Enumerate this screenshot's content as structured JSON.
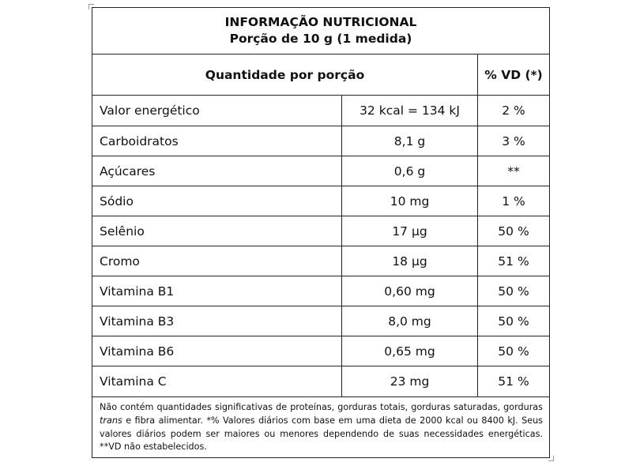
{
  "table": {
    "title": "INFORMAÇÃO NUTRICIONAL",
    "subtitle": "Porção de 10 g (1 medida)",
    "header": {
      "quantity_label": "Quantidade por porção",
      "vd_label": "% VD (*)"
    },
    "rows": [
      {
        "name": "Valor energético",
        "amount": "32 kcal = 134 kJ",
        "vd": "2 %"
      },
      {
        "name": "Carboidratos",
        "amount": "8,1 g",
        "vd": "3 %"
      },
      {
        "name": "Açúcares",
        "amount": "0,6 g",
        "vd": "**"
      },
      {
        "name": "Sódio",
        "amount": "10 mg",
        "vd": "1 %"
      },
      {
        "name": "Selênio",
        "amount": "17 µg",
        "vd": "50 %"
      },
      {
        "name": "Cromo",
        "amount": "18 µg",
        "vd": "51 %"
      },
      {
        "name": "Vitamina B1",
        "amount": "0,60 mg",
        "vd": "50 %"
      },
      {
        "name": "Vitamina B3",
        "amount": "8,0 mg",
        "vd": "50 %"
      },
      {
        "name": "Vitamina B6",
        "amount": "0,65 mg",
        "vd": "50 %"
      },
      {
        "name": "Vitamina C",
        "amount": "23 mg",
        "vd": "51 %"
      }
    ],
    "footnote": {
      "part1": "Não contém quantidades significativas de proteínas, gorduras totais, gorduras saturadas, gorduras ",
      "italic": "trans",
      "part2": " e fibra alimentar. *% Valores diários com base em uma dieta de 2000 kcal ou 8400 kJ. Seus valores diários podem ser maiores ou menores dependendo de suas necessidades energéticas. **VD não estabelecidos."
    }
  }
}
